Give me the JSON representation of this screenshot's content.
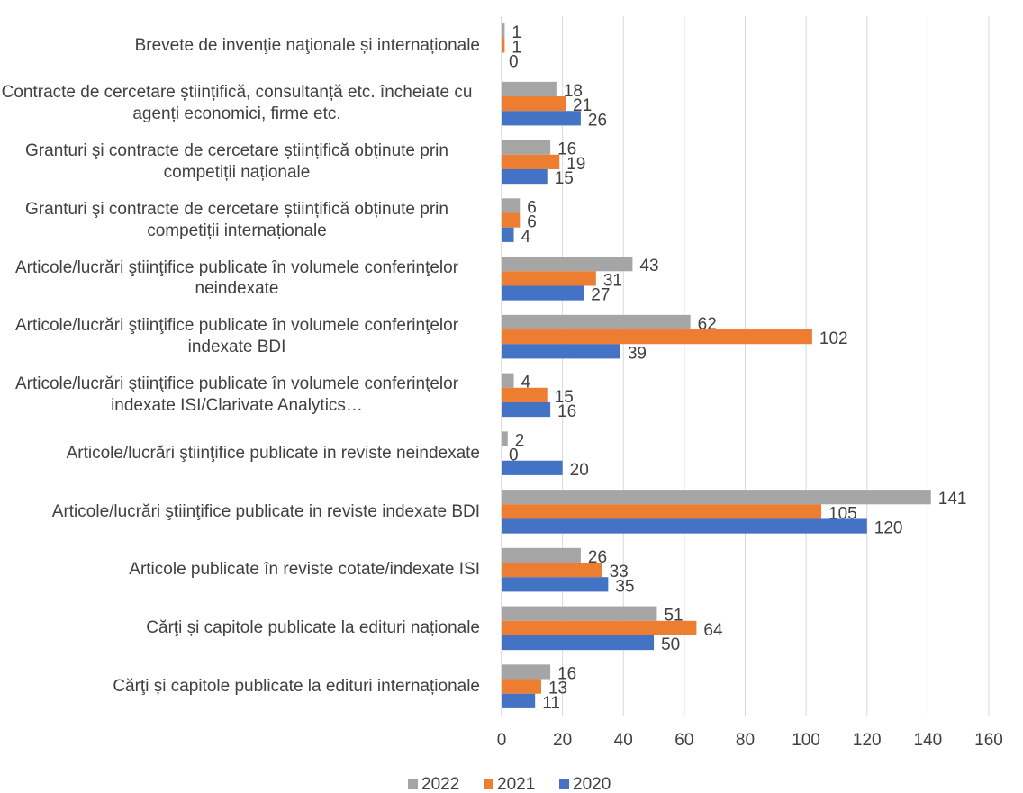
{
  "chart_data": {
    "type": "bar",
    "orientation": "horizontal",
    "categories": [
      "Brevete de invenţie naţionale și internaționale",
      "Contracte de cercetare științifică, consultanță etc. încheiate cu agenți economici, firme etc.",
      "Granturi şi contracte de cercetare științifică obținute prin competiții naționale",
      "Granturi şi contracte de cercetare științifică obținute prin competiții internaționale",
      "Articole/lucrări ştiinţifice publicate în volumele conferinţelor neindexate",
      "Articole/lucrări ştiinţifice publicate în volumele conferinţelor indexate BDI",
      "Articole/lucrări ştiinţifice publicate în volumele conferinţelor indexate ISI/Clarivate Analytics…",
      "Articole/lucrări ştiinţifice publicate in reviste neindexate",
      "Articole/lucrări ştiinţifice publicate in reviste indexate BDI",
      "Articole publicate în reviste cotate/indexate ISI",
      "Cărţi și capitole publicate la edituri naționale",
      "Cărţi și capitole publicate la edituri internaționale"
    ],
    "series": [
      {
        "name": "2022",
        "color": "#a5a5a5",
        "values": [
          1,
          18,
          16,
          6,
          43,
          62,
          4,
          2,
          141,
          26,
          51,
          16
        ]
      },
      {
        "name": "2021",
        "color": "#ed7d31",
        "values": [
          1,
          21,
          19,
          6,
          31,
          102,
          15,
          0,
          105,
          33,
          64,
          13
        ]
      },
      {
        "name": "2020",
        "color": "#4472c4",
        "values": [
          0,
          26,
          15,
          4,
          27,
          39,
          16,
          20,
          120,
          35,
          50,
          11
        ]
      }
    ],
    "xlim": [
      0,
      160
    ],
    "xticks": [
      0,
      20,
      40,
      60,
      80,
      100,
      120,
      140,
      160
    ],
    "grid": true,
    "legend": "bottom"
  }
}
